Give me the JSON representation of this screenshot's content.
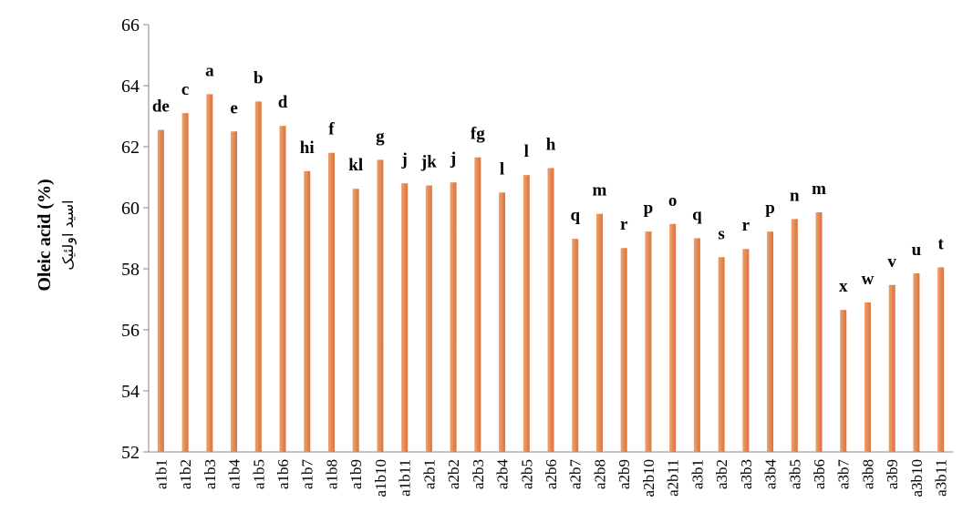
{
  "chart_data": {
    "type": "bar",
    "title": "",
    "ylabel": "Oleic acid (%)",
    "ylabel_secondary": "اسید اولئیک",
    "xlabel": "",
    "ylim": [
      52,
      66
    ],
    "yticks": [
      52,
      54,
      56,
      58,
      60,
      62,
      64,
      66
    ],
    "grid": false,
    "bar_color": "#d9733a",
    "categories": [
      "a1b1",
      "a1b2",
      "a1b3",
      "a1b4",
      "a1b5",
      "a1b6",
      "a1b7",
      "a1b8",
      "a1b9",
      "a1b10",
      "a1b11",
      "a2b1",
      "a2b2",
      "a2b3",
      "a2b4",
      "a2b5",
      "a2b6",
      "a2b7",
      "a2b8",
      "a2b9",
      "a2b10",
      "a2b11",
      "a3b1",
      "a3b2",
      "a3b3",
      "a3b4",
      "a3b5",
      "a3b6",
      "a3b7",
      "a3b8",
      "a3b9",
      "a3b10",
      "a3b11"
    ],
    "values": [
      62.55,
      63.1,
      63.72,
      62.5,
      63.48,
      62.68,
      61.2,
      61.8,
      60.62,
      61.57,
      60.8,
      60.73,
      60.83,
      61.65,
      60.5,
      61.07,
      61.3,
      58.98,
      59.8,
      58.68,
      59.22,
      59.47,
      59.0,
      58.38,
      58.65,
      59.22,
      59.63,
      59.85,
      56.65,
      56.9,
      57.47,
      57.85,
      58.05
    ],
    "letters": [
      "de",
      "c",
      "a",
      "e",
      "b",
      "d",
      "hi",
      "f",
      "kl",
      "g",
      "j",
      "jk",
      "j",
      "fg",
      "l",
      "l",
      "h",
      "q",
      "m",
      "r",
      "p",
      "o",
      "q",
      "s",
      "r",
      "p",
      "n",
      "m",
      "x",
      "w",
      "v",
      "u",
      "t"
    ]
  }
}
